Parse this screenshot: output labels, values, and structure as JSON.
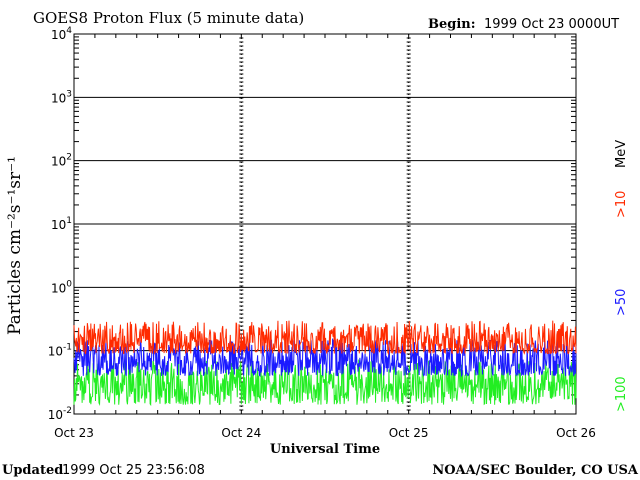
{
  "header": {
    "title": "GOES8 Proton Flux (5 minute data)",
    "begin_label": "Begin:",
    "begin_value": "1999 Oct 23 0000UT"
  },
  "footer": {
    "updated_label": "Updated",
    "updated_value": "1999 Oct 25 23:56:08",
    "credit": "NOAA/SEC Boulder, CO USA"
  },
  "colors": {
    "gt10": "#ff2a00",
    "gt50": "#1a1aff",
    "gt100": "#22ee22",
    "grid": "#000000",
    "background": "#ffffff"
  },
  "chart_data": {
    "type": "line",
    "title": "GOES8 Proton Flux (5 minute data)",
    "xlabel": "Universal Time",
    "ylabel": "Particles cm⁻²s⁻¹sr⁻¹",
    "y_scale": "log",
    "ylim": [
      0.01,
      10000
    ],
    "y_ticks": [
      {
        "base": "10",
        "exp": "4"
      },
      {
        "base": "10",
        "exp": "3"
      },
      {
        "base": "10",
        "exp": "2"
      },
      {
        "base": "10",
        "exp": "1"
      },
      {
        "base": "10",
        "exp": "0"
      },
      {
        "base": "10",
        "exp": "-1"
      },
      {
        "base": "10",
        "exp": "-2"
      }
    ],
    "x_range": [
      "1999-10-23T00:00",
      "1999-10-26T00:00"
    ],
    "x_tick_labels": [
      "Oct 23",
      "Oct 24",
      "Oct 25",
      "Oct 26"
    ],
    "grid": true,
    "legend_position": "right",
    "legend": {
      "units": "MeV",
      "entries": [
        ">10",
        ">50",
        ">100"
      ]
    },
    "series": [
      {
        "name": ">10",
        "level_min": 0.09,
        "level_max": 0.3
      },
      {
        "name": ">50",
        "level_min": 0.04,
        "level_max": 0.15
      },
      {
        "name": ">100",
        "level_min": 0.014,
        "level_max": 0.07
      }
    ]
  }
}
